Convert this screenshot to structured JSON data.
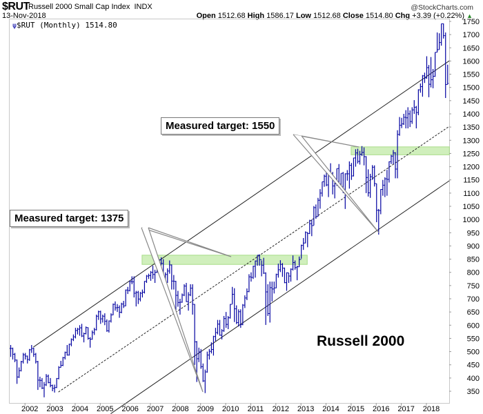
{
  "header": {
    "symbol": "$RUT",
    "name": "Russell 2000 Small Cap Index",
    "exchange": "INDX",
    "date": "13-Nov-2018",
    "copyright": "@StockCharts.com",
    "open_label": "Open",
    "open": "1512.68",
    "high_label": "High",
    "high": "1586.17",
    "low_label": "Low",
    "low": "1512.68",
    "close_label": "Close",
    "close": "1514.80",
    "chg_label": "Chg",
    "chg": "+3.39 (+0.22%)",
    "chg_direction": "up"
  },
  "legend": "$RUT (Monthly) 1514.80",
  "chart_data": {
    "type": "ohlc-bar",
    "frequency": "monthly",
    "bar_color": "#0000a0",
    "y_scale": "linear",
    "ylim": [
      330,
      1760
    ],
    "y_ticks": [
      350,
      400,
      450,
      500,
      550,
      600,
      650,
      700,
      750,
      800,
      850,
      900,
      950,
      1000,
      1050,
      1100,
      1150,
      1200,
      1250,
      1300,
      1350,
      1400,
      1450,
      1500,
      1550,
      1600,
      1650,
      1700,
      1750
    ],
    "x_ticks": [
      "2002",
      "2003",
      "2004",
      "2005",
      "2006",
      "2007",
      "2008",
      "2009",
      "2010",
      "2011",
      "2012",
      "2013",
      "2014",
      "2015",
      "2016",
      "2017",
      "2018"
    ],
    "axis_position": "right",
    "grid": false,
    "bars": [
      {
        "year": 2001,
        "from_month": 6,
        "hlc": [
          [
            525,
            480,
            512
          ],
          [
            515,
            470,
            490
          ],
          [
            495,
            460,
            468
          ],
          [
            470,
            378,
            404
          ],
          [
            440,
            400,
            428
          ],
          [
            465,
            425,
            462
          ],
          [
            495,
            455,
            488
          ]
        ]
      },
      {
        "year": 2002,
        "from_month": 1,
        "hlc": [
          [
            495,
            470,
            483
          ],
          [
            485,
            455,
            470
          ],
          [
            510,
            465,
            507
          ],
          [
            525,
            495,
            512
          ],
          [
            515,
            480,
            490
          ],
          [
            495,
            455,
            462
          ],
          [
            465,
            355,
            392
          ],
          [
            405,
            365,
            391
          ],
          [
            400,
            358,
            362
          ],
          [
            385,
            327,
            374
          ],
          [
            415,
            370,
            407
          ],
          [
            413,
            380,
            383
          ]
        ]
      },
      {
        "year": 2003,
        "from_month": 1,
        "hlc": [
          [
            400,
            365,
            372
          ],
          [
            375,
            350,
            361
          ],
          [
            375,
            345,
            364
          ],
          [
            400,
            362,
            398
          ],
          [
            445,
            395,
            440
          ],
          [
            465,
            440,
            448
          ],
          [
            480,
            445,
            477
          ],
          [
            500,
            470,
            497
          ],
          [
            525,
            485,
            487
          ],
          [
            530,
            485,
            528
          ],
          [
            550,
            520,
            546
          ],
          [
            565,
            540,
            556
          ]
        ]
      },
      {
        "year": 2004,
        "from_month": 1,
        "hlc": [
          [
            590,
            550,
            580
          ],
          [
            590,
            565,
            585
          ],
          [
            600,
            560,
            590
          ],
          [
            605,
            555,
            559
          ],
          [
            572,
            535,
            568
          ],
          [
            595,
            565,
            591
          ],
          [
            592,
            545,
            550
          ],
          [
            555,
            515,
            547
          ],
          [
            580,
            545,
            572
          ],
          [
            590,
            563,
            583
          ],
          [
            640,
            580,
            634
          ],
          [
            655,
            620,
            651
          ]
        ]
      },
      {
        "year": 2005,
        "from_month": 1,
        "hlc": [
          [
            655,
            605,
            624
          ],
          [
            640,
            610,
            634
          ],
          [
            645,
            600,
            615
          ],
          [
            622,
            575,
            579
          ],
          [
            618,
            572,
            616
          ],
          [
            645,
            610,
            639
          ],
          [
            682,
            638,
            679
          ],
          [
            690,
            655,
            666
          ],
          [
            680,
            650,
            667
          ],
          [
            675,
            628,
            649
          ],
          [
            685,
            645,
            680
          ],
          [
            692,
            665,
            673
          ]
        ]
      },
      {
        "year": 2006,
        "from_month": 1,
        "hlc": [
          [
            735,
            672,
            733
          ],
          [
            745,
            718,
            731
          ],
          [
            768,
            728,
            765
          ],
          [
            785,
            755,
            764
          ],
          [
            785,
            705,
            721
          ],
          [
            730,
            671,
            724
          ],
          [
            730,
            680,
            699
          ],
          [
            726,
            690,
            721
          ],
          [
            735,
            705,
            725
          ],
          [
            767,
            720,
            766
          ],
          [
            790,
            760,
            786
          ],
          [
            795,
            775,
            788
          ]
        ]
      },
      {
        "year": 2007,
        "from_month": 1,
        "hlc": [
          [
            805,
            768,
            800
          ],
          [
            825,
            775,
            792
          ],
          [
            810,
            760,
            800
          ],
          [
            830,
            798,
            814
          ],
          [
            850,
            810,
            847
          ],
          [
            857,
            826,
            834
          ],
          [
            850,
            770,
            777
          ],
          [
            800,
            735,
            792
          ],
          [
            815,
            760,
            805
          ],
          [
            845,
            795,
            828
          ],
          [
            830,
            735,
            767
          ],
          [
            790,
            735,
            766
          ]
        ]
      },
      {
        "year": 2008,
        "from_month": 1,
        "hlc": [
          [
            768,
            643,
            713
          ],
          [
            730,
            670,
            686
          ],
          [
            700,
            640,
            687
          ],
          [
            720,
            685,
            714
          ],
          [
            755,
            710,
            748
          ],
          [
            760,
            688,
            689
          ],
          [
            725,
            655,
            715
          ],
          [
            755,
            710,
            740
          ],
          [
            755,
            640,
            679
          ],
          [
            680,
            450,
            537
          ],
          [
            540,
            385,
            473
          ],
          [
            515,
            460,
            499
          ]
        ]
      },
      {
        "year": 2009,
        "from_month": 1,
        "hlc": [
          [
            510,
            435,
            443
          ],
          [
            455,
            385,
            389
          ],
          [
            432,
            343,
            423
          ],
          [
            500,
            420,
            487
          ],
          [
            510,
            470,
            501
          ],
          [
            535,
            493,
            508
          ],
          [
            560,
            485,
            557
          ],
          [
            590,
            540,
            572
          ],
          [
            620,
            565,
            604
          ],
          [
            620,
            560,
            562
          ],
          [
            585,
            546,
            579
          ],
          [
            635,
            575,
            625
          ]
        ]
      },
      {
        "year": 2010,
        "from_month": 1,
        "hlc": [
          [
            650,
            590,
            603
          ],
          [
            635,
            585,
            628
          ],
          [
            680,
            625,
            679
          ],
          [
            745,
            680,
            717
          ],
          [
            740,
            612,
            662
          ],
          [
            675,
            604,
            610
          ],
          [
            660,
            595,
            651
          ],
          [
            660,
            590,
            602
          ],
          [
            680,
            600,
            676
          ],
          [
            713,
            665,
            703
          ],
          [
            739,
            695,
            727
          ],
          [
            793,
            725,
            783
          ]
        ]
      },
      {
        "year": 2011,
        "from_month": 1,
        "hlc": [
          [
            800,
            765,
            781
          ],
          [
            825,
            775,
            823
          ],
          [
            845,
            780,
            843
          ],
          [
            865,
            825,
            865
          ],
          [
            868,
            825,
            848
          ],
          [
            845,
            785,
            827
          ],
          [
            855,
            794,
            797
          ],
          [
            800,
            601,
            726
          ],
          [
            755,
            635,
            644
          ],
          [
            765,
            610,
            742
          ],
          [
            765,
            690,
            737
          ],
          [
            765,
            720,
            741
          ]
        ]
      },
      {
        "year": 2012,
        "from_month": 1,
        "hlc": [
          [
            795,
            740,
            792
          ],
          [
            833,
            780,
            810
          ],
          [
            846,
            801,
            830
          ],
          [
            835,
            783,
            816
          ],
          [
            818,
            759,
            761
          ],
          [
            800,
            730,
            798
          ],
          [
            798,
            760,
            786
          ],
          [
            815,
            765,
            812
          ],
          [
            864,
            807,
            837
          ],
          [
            845,
            810,
            818
          ],
          [
            825,
            770,
            821
          ],
          [
            860,
            820,
            849
          ]
        ]
      },
      {
        "year": 2013,
        "from_month": 1,
        "hlc": [
          [
            905,
            852,
            902
          ],
          [
            930,
            885,
            911
          ],
          [
            955,
            910,
            951
          ],
          [
            952,
            895,
            947
          ],
          [
            999,
            945,
            984
          ],
          [
            1000,
            937,
            977
          ],
          [
            1051,
            978,
            1045
          ],
          [
            1057,
            1003,
            1011
          ],
          [
            1082,
            1011,
            1073
          ],
          [
            1115,
            1041,
            1100
          ],
          [
            1143,
            1087,
            1143
          ],
          [
            1170,
            1124,
            1164
          ]
        ]
      },
      {
        "year": 2014,
        "from_month": 1,
        "hlc": [
          [
            1180,
            1126,
            1131
          ],
          [
            1190,
            1085,
            1183
          ],
          [
            1213,
            1163,
            1173
          ],
          [
            1180,
            1095,
            1127
          ],
          [
            1140,
            1080,
            1135
          ],
          [
            1193,
            1127,
            1193
          ],
          [
            1210,
            1121,
            1121
          ],
          [
            1175,
            1113,
            1175
          ],
          [
            1180,
            1101,
            1101
          ],
          [
            1175,
            1040,
            1173
          ],
          [
            1187,
            1147,
            1173
          ],
          [
            1220,
            1117,
            1205
          ]
        ]
      },
      {
        "year": 2015,
        "from_month": 1,
        "hlc": [
          [
            1214,
            1150,
            1165
          ],
          [
            1234,
            1163,
            1233
          ],
          [
            1266,
            1200,
            1252
          ],
          [
            1268,
            1212,
            1220
          ],
          [
            1260,
            1208,
            1247
          ],
          [
            1278,
            1240,
            1254
          ],
          [
            1273,
            1205,
            1238
          ],
          [
            1240,
            1100,
            1159
          ],
          [
            1190,
            1087,
            1101
          ],
          [
            1173,
            1082,
            1162
          ],
          [
            1206,
            1150,
            1198
          ],
          [
            1205,
            1125,
            1136
          ]
        ]
      },
      {
        "year": 2016,
        "from_month": 1,
        "hlc": [
          [
            1136,
            990,
            1035
          ],
          [
            1040,
            943,
            1034
          ],
          [
            1115,
            1020,
            1114
          ],
          [
            1150,
            1090,
            1130
          ],
          [
            1160,
            1085,
            1154
          ],
          [
            1188,
            1090,
            1152
          ],
          [
            1220,
            1140,
            1219
          ],
          [
            1245,
            1210,
            1240
          ],
          [
            1263,
            1210,
            1252
          ],
          [
            1255,
            1156,
            1191
          ],
          [
            1338,
            1156,
            1322
          ],
          [
            1388,
            1317,
            1357
          ]
        ]
      },
      {
        "year": 2017,
        "from_month": 1,
        "hlc": [
          [
            1385,
            1346,
            1362
          ],
          [
            1400,
            1358,
            1387
          ],
          [
            1414,
            1345,
            1385
          ],
          [
            1425,
            1345,
            1400
          ],
          [
            1413,
            1350,
            1371
          ],
          [
            1425,
            1362,
            1415
          ],
          [
            1452,
            1400,
            1425
          ],
          [
            1430,
            1345,
            1405
          ],
          [
            1493,
            1395,
            1491
          ],
          [
            1515,
            1480,
            1503
          ],
          [
            1547,
            1465,
            1544
          ],
          [
            1556,
            1517,
            1536
          ]
        ]
      },
      {
        "year": 2018,
        "from_month": 1,
        "hlc": [
          [
            1618,
            1533,
            1575
          ],
          [
            1585,
            1463,
            1512
          ],
          [
            1615,
            1500,
            1529
          ],
          [
            1570,
            1497,
            1542
          ],
          [
            1633,
            1540,
            1633
          ],
          [
            1708,
            1633,
            1643
          ],
          [
            1705,
            1643,
            1670
          ],
          [
            1741,
            1658,
            1741
          ],
          [
            1742,
            1685,
            1696
          ],
          [
            1708,
            1460,
            1511
          ],
          [
            1586,
            1512,
            1515
          ]
        ]
      }
    ],
    "trendlines": [
      {
        "style": "solid",
        "from": [
          "2002-05",
          517
        ],
        "to": [
          "2018-12",
          1601
        ]
      },
      {
        "style": "dashed",
        "from": [
          "2003-05",
          347
        ],
        "to": [
          "2018-12",
          1353
        ]
      },
      {
        "style": "solid",
        "from": [
          "2005-06",
          265
        ],
        "to": [
          "2018-12",
          1147
        ]
      }
    ],
    "zones": [
      {
        "color": "#c8ecb0",
        "low": 830,
        "high": 865,
        "from": "2006-09",
        "to": "2013-04"
      },
      {
        "color": "#c8ecb0",
        "low": 1245,
        "high": 1275,
        "from": "2015-01",
        "to": "2018-12"
      }
    ],
    "annotations": [
      {
        "text": "Measured target: 1375"
      },
      {
        "text": "Measured target: 1550"
      },
      {
        "text": "Russell 2000"
      }
    ]
  }
}
